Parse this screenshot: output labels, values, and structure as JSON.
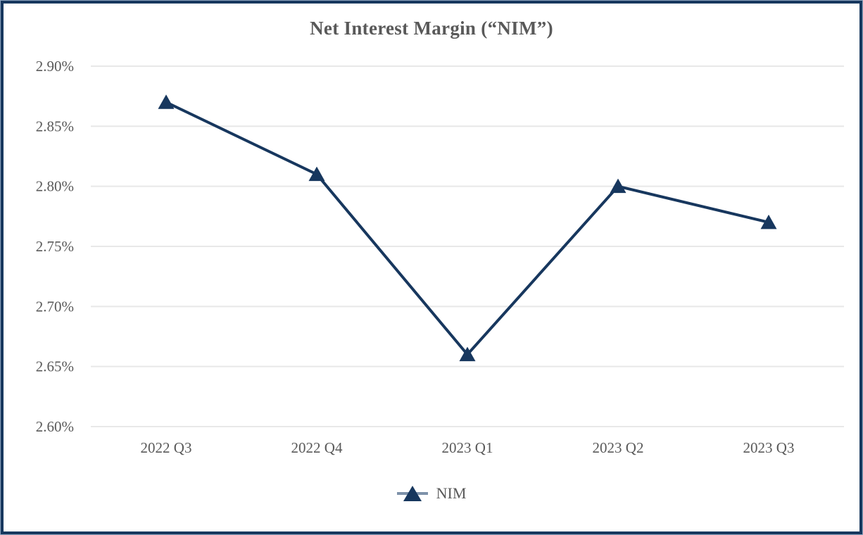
{
  "frame": {
    "border_color": "#17375E",
    "outer_edge_color": "#8FA5C0"
  },
  "chart_data": {
    "type": "line",
    "title": "Net Interest Margin (“NIM”)",
    "categories": [
      "2022 Q3",
      "2022 Q4",
      "2023 Q1",
      "2023 Q2",
      "2023 Q3"
    ],
    "series": [
      {
        "name": "NIM",
        "values": [
          2.87,
          2.81,
          2.66,
          2.8,
          2.77
        ]
      }
    ],
    "ylim": [
      2.6,
      2.9
    ],
    "yticks": [
      {
        "value": 2.6,
        "label": "2.60%"
      },
      {
        "value": 2.65,
        "label": "2.65%"
      },
      {
        "value": 2.7,
        "label": "2.70%"
      },
      {
        "value": 2.75,
        "label": "2.75%"
      },
      {
        "value": 2.8,
        "label": "2.80%"
      },
      {
        "value": 2.85,
        "label": "2.85%"
      },
      {
        "value": 2.9,
        "label": "2.90%"
      }
    ],
    "grid": "horizontal",
    "legend_position": "bottom",
    "marker": "triangle-up",
    "line_color": "#17375E",
    "legend_line_color": "#7E92AA",
    "gridline_color": "#E8E8E8",
    "text_color": "#595959",
    "title_color": "#595959"
  }
}
